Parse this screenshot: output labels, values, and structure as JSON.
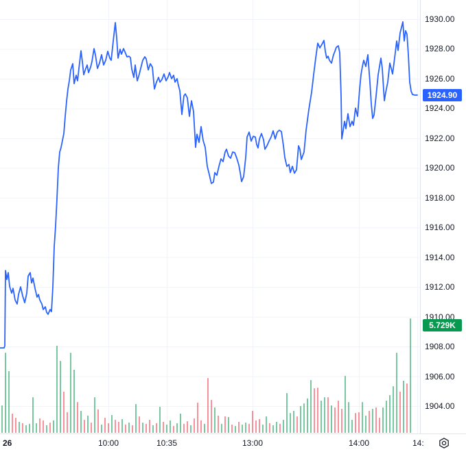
{
  "colors": {
    "line": "#2962ff",
    "grid": "#f0f3fa",
    "axis_border": "#e0e3eb",
    "axis_text": "#131722",
    "volume_up": "rgba(8,153,80,0.55)",
    "volume_down": "rgba(242,54,69,0.55)",
    "last_price_badge_bg": "#2962ff",
    "volume_badge_bg": "#089950",
    "badge_text": "#ffffff"
  },
  "price_scale": {
    "last_price_label": "1924.90",
    "volume_label": "5.729K"
  },
  "time_scale": {
    "labels": [
      "26",
      "10:00",
      "10:35",
      "13:00",
      "14:00",
      "14:"
    ]
  },
  "chart_data": {
    "type": "line",
    "title": "",
    "xlabel": "",
    "ylabel": "",
    "legend": [],
    "grid": true,
    "y_axis": {
      "side": "right",
      "min_label": 1904,
      "max_label": 1930,
      "step": 2,
      "tick_format": "0.00"
    },
    "x_axis": {
      "tick_labels": [
        "26",
        "10:00",
        "10:35",
        "13:00",
        "14:00",
        "14:"
      ]
    },
    "last_price": 1924.9,
    "last_volume_k": 5.729,
    "price_points": [
      [
        0,
        1907.91
      ],
      [
        6,
        1907.91
      ],
      [
        7,
        1908.05
      ],
      [
        8,
        1913.11
      ],
      [
        10,
        1912.51
      ],
      [
        12,
        1912.97
      ],
      [
        14,
        1912.05
      ],
      [
        17,
        1911.59
      ],
      [
        19,
        1911.91
      ],
      [
        22,
        1911.13
      ],
      [
        25,
        1910.86
      ],
      [
        27,
        1911.5
      ],
      [
        30,
        1912.01
      ],
      [
        33,
        1911.41
      ],
      [
        36,
        1910.95
      ],
      [
        39,
        1911.59
      ],
      [
        41,
        1912.74
      ],
      [
        44,
        1912.97
      ],
      [
        46,
        1912.28
      ],
      [
        48,
        1912.6
      ],
      [
        51,
        1911.91
      ],
      [
        54,
        1911.32
      ],
      [
        56,
        1911.5
      ],
      [
        58,
        1911.13
      ],
      [
        61,
        1910.86
      ],
      [
        63,
        1910.49
      ],
      [
        66,
        1910.67
      ],
      [
        68,
        1910.3
      ],
      [
        70,
        1910.17
      ],
      [
        73,
        1910.49
      ],
      [
        75,
        1910.35
      ],
      [
        77,
        1912.0
      ],
      [
        79,
        1914.72
      ],
      [
        81,
        1916.1
      ],
      [
        83,
        1917.94
      ],
      [
        85,
        1920.01
      ],
      [
        87,
        1921.07
      ],
      [
        89,
        1921.39
      ],
      [
        91,
        1921.85
      ],
      [
        93,
        1922.31
      ],
      [
        95,
        1923.47
      ],
      [
        97,
        1924.48
      ],
      [
        99,
        1925.31
      ],
      [
        101,
        1925.86
      ],
      [
        103,
        1926.59
      ],
      [
        106,
        1927.01
      ],
      [
        108,
        1925.67
      ],
      [
        111,
        1926.23
      ],
      [
        113,
        1925.86
      ],
      [
        115,
        1926.69
      ],
      [
        118,
        1927.88
      ],
      [
        120,
        1927.15
      ],
      [
        122,
        1926.27
      ],
      [
        125,
        1926.69
      ],
      [
        127,
        1926.92
      ],
      [
        129,
        1926.41
      ],
      [
        132,
        1926.78
      ],
      [
        134,
        1927.15
      ],
      [
        137,
        1928.02
      ],
      [
        139,
        1927.61
      ],
      [
        142,
        1926.69
      ],
      [
        145,
        1927.05
      ],
      [
        148,
        1927.61
      ],
      [
        151,
        1926.92
      ],
      [
        154,
        1927.24
      ],
      [
        157,
        1927.84
      ],
      [
        160,
        1927.38
      ],
      [
        162,
        1927.24
      ],
      [
        165,
        1928.53
      ],
      [
        168,
        1929.77
      ],
      [
        170,
        1928.76
      ],
      [
        172,
        1927.38
      ],
      [
        175,
        1927.98
      ],
      [
        177,
        1927.65
      ],
      [
        180,
        1928.02
      ],
      [
        183,
        1927.7
      ],
      [
        185,
        1927.47
      ],
      [
        188,
        1927.51
      ],
      [
        190,
        1927.42
      ],
      [
        192,
        1926.64
      ],
      [
        195,
        1926.09
      ],
      [
        197,
        1926.92
      ],
      [
        200,
        1925.86
      ],
      [
        203,
        1926.32
      ],
      [
        205,
        1926.69
      ],
      [
        208,
        1927.24
      ],
      [
        211,
        1927.47
      ],
      [
        213,
        1927.33
      ],
      [
        216,
        1926.59
      ],
      [
        219,
        1927.01
      ],
      [
        222,
        1926.78
      ],
      [
        225,
        1925.31
      ],
      [
        228,
        1925.77
      ],
      [
        231,
        1926.09
      ],
      [
        233,
        1925.77
      ],
      [
        236,
        1925.95
      ],
      [
        239,
        1926.32
      ],
      [
        242,
        1925.86
      ],
      [
        245,
        1926.13
      ],
      [
        247,
        1926.41
      ],
      [
        250,
        1926.0
      ],
      [
        253,
        1926.23
      ],
      [
        255,
        1925.77
      ],
      [
        258,
        1926.0
      ],
      [
        260,
        1925.54
      ],
      [
        262,
        1925.21
      ],
      [
        265,
        1923.6
      ],
      [
        268,
        1924.85
      ],
      [
        270,
        1924.98
      ],
      [
        273,
        1924.71
      ],
      [
        276,
        1923.47
      ],
      [
        279,
        1924.52
      ],
      [
        282,
        1923.79
      ],
      [
        285,
        1921.39
      ],
      [
        287,
        1922.27
      ],
      [
        290,
        1921.72
      ],
      [
        293,
        1922.78
      ],
      [
        296,
        1921.85
      ],
      [
        299,
        1921.39
      ],
      [
        302,
        1920.11
      ],
      [
        305,
        1919.55
      ],
      [
        308,
        1918.96
      ],
      [
        311,
        1919.05
      ],
      [
        313,
        1919.69
      ],
      [
        316,
        1919.51
      ],
      [
        319,
        1920.11
      ],
      [
        322,
        1920.61
      ],
      [
        325,
        1920.43
      ],
      [
        328,
        1921.07
      ],
      [
        330,
        1921.26
      ],
      [
        333,
        1920.8
      ],
      [
        336,
        1920.66
      ],
      [
        339,
        1921.07
      ],
      [
        342,
        1921.03
      ],
      [
        345,
        1920.66
      ],
      [
        348,
        1920.2
      ],
      [
        350,
        1919.69
      ],
      [
        352,
        1919.09
      ],
      [
        355,
        1919.42
      ],
      [
        358,
        1920.7
      ],
      [
        360,
        1922.08
      ],
      [
        363,
        1922.41
      ],
      [
        366,
        1921.81
      ],
      [
        369,
        1922.13
      ],
      [
        372,
        1922.08
      ],
      [
        374,
        1921.58
      ],
      [
        376,
        1921.35
      ],
      [
        378,
        1921.95
      ],
      [
        381,
        1922.31
      ],
      [
        384,
        1921.9
      ],
      [
        386,
        1921.26
      ],
      [
        389,
        1921.49
      ],
      [
        392,
        1921.81
      ],
      [
        395,
        1922.08
      ],
      [
        398,
        1922.5
      ],
      [
        401,
        1921.95
      ],
      [
        404,
        1922.41
      ],
      [
        407,
        1922.54
      ],
      [
        410,
        1922.45
      ],
      [
        413,
        1921.49
      ],
      [
        415,
        1920.7
      ],
      [
        418,
        1920.11
      ],
      [
        421,
        1920.24
      ],
      [
        423,
        1919.69
      ],
      [
        426,
        1920.11
      ],
      [
        429,
        1919.65
      ],
      [
        432,
        1919.88
      ],
      [
        435,
        1921.49
      ],
      [
        437,
        1921.26
      ],
      [
        439,
        1920.57
      ],
      [
        443,
        1921.07
      ],
      [
        446,
        1922.54
      ],
      [
        450,
        1923.93
      ],
      [
        454,
        1925.08
      ],
      [
        457,
        1926.27
      ],
      [
        460,
        1927.38
      ],
      [
        463,
        1928.39
      ],
      [
        466,
        1928.07
      ],
      [
        469,
        1928.3
      ],
      [
        472,
        1928.57
      ],
      [
        474,
        1927.84
      ],
      [
        476,
        1927.38
      ],
      [
        478,
        1927.51
      ],
      [
        480,
        1927.24
      ],
      [
        483,
        1927.05
      ],
      [
        486,
        1927.61
      ],
      [
        488,
        1927.84
      ],
      [
        490,
        1928.11
      ],
      [
        493,
        1928.21
      ],
      [
        495,
        1927.75
      ],
      [
        497,
        1924.85
      ],
      [
        498,
        1921.95
      ],
      [
        500,
        1922.5
      ],
      [
        502,
        1923.14
      ],
      [
        504,
        1922.64
      ],
      [
        507,
        1923.65
      ],
      [
        510,
        1922.78
      ],
      [
        513,
        1923.14
      ],
      [
        515,
        1922.87
      ],
      [
        518,
        1924.02
      ],
      [
        521,
        1923.47
      ],
      [
        524,
        1925.31
      ],
      [
        526,
        1926.27
      ],
      [
        528,
        1926.82
      ],
      [
        530,
        1927.24
      ],
      [
        533,
        1926.82
      ],
      [
        536,
        1927.61
      ],
      [
        539,
        1925.77
      ],
      [
        541,
        1924.29
      ],
      [
        543,
        1923.33
      ],
      [
        545,
        1923.56
      ],
      [
        548,
        1924.85
      ],
      [
        551,
        1926.27
      ],
      [
        555,
        1927.38
      ],
      [
        557,
        1926.69
      ],
      [
        560,
        1924.52
      ],
      [
        562,
        1925.08
      ],
      [
        565,
        1925.77
      ],
      [
        568,
        1927.05
      ],
      [
        570,
        1926.69
      ],
      [
        572,
        1926.32
      ],
      [
        575,
        1927.38
      ],
      [
        578,
        1928.53
      ],
      [
        580,
        1927.9
      ],
      [
        583,
        1929.08
      ],
      [
        587,
        1929.82
      ],
      [
        589,
        1928.53
      ],
      [
        591,
        1929.22
      ],
      [
        593,
        1928.99
      ],
      [
        595,
        1927.61
      ],
      [
        597,
        1925.77
      ],
      [
        599,
        1925.17
      ],
      [
        601,
        1924.94
      ],
      [
        604,
        1924.9
      ],
      [
        608,
        1924.9
      ]
    ],
    "volume": {
      "unit": "K",
      "max_k": 5.729,
      "bars": [
        [
          1.37,
          "g"
        ],
        [
          4.01,
          "g"
        ],
        [
          3.09,
          "g"
        ],
        [
          0.96,
          "r"
        ],
        [
          0.75,
          "r"
        ],
        [
          0.55,
          "g"
        ],
        [
          0.48,
          "r"
        ],
        [
          0.38,
          "g"
        ],
        [
          0.45,
          "g"
        ],
        [
          1.78,
          "g"
        ],
        [
          0.48,
          "g"
        ],
        [
          0.72,
          "r"
        ],
        [
          0.62,
          "r"
        ],
        [
          0.38,
          "g"
        ],
        [
          0.51,
          "r"
        ],
        [
          0.62,
          "g"
        ],
        [
          4.36,
          "g"
        ],
        [
          3.6,
          "g"
        ],
        [
          2.06,
          "r"
        ],
        [
          1.03,
          "r"
        ],
        [
          4.01,
          "g"
        ],
        [
          3.16,
          "g"
        ],
        [
          1.54,
          "r"
        ],
        [
          1.1,
          "g"
        ],
        [
          0.65,
          "r"
        ],
        [
          0.86,
          "g"
        ],
        [
          0.51,
          "r"
        ],
        [
          1.78,
          "g"
        ],
        [
          1.17,
          "r"
        ],
        [
          0.41,
          "g"
        ],
        [
          0.75,
          "r"
        ],
        [
          0.48,
          "r"
        ],
        [
          0.89,
          "g"
        ],
        [
          0.65,
          "r"
        ],
        [
          0.55,
          "r"
        ],
        [
          0.69,
          "g"
        ],
        [
          0.41,
          "r"
        ],
        [
          0.51,
          "g"
        ],
        [
          0.38,
          "r"
        ],
        [
          1.44,
          "g"
        ],
        [
          0.82,
          "r"
        ],
        [
          0.51,
          "g"
        ],
        [
          0.45,
          "r"
        ],
        [
          0.65,
          "r"
        ],
        [
          0.38,
          "g"
        ],
        [
          0.48,
          "r"
        ],
        [
          1.3,
          "g"
        ],
        [
          0.55,
          "r"
        ],
        [
          0.41,
          "g"
        ],
        [
          0.62,
          "g"
        ],
        [
          0.34,
          "r"
        ],
        [
          0.48,
          "g"
        ],
        [
          0.96,
          "g"
        ],
        [
          0.45,
          "r"
        ],
        [
          0.58,
          "r"
        ],
        [
          0.38,
          "g"
        ],
        [
          0.72,
          "r"
        ],
        [
          1.51,
          "r"
        ],
        [
          0.62,
          "r"
        ],
        [
          0.45,
          "g"
        ],
        [
          2.74,
          "r"
        ],
        [
          1.65,
          "r"
        ],
        [
          1.27,
          "g"
        ],
        [
          0.86,
          "r"
        ],
        [
          0.45,
          "g"
        ],
        [
          0.82,
          "r"
        ],
        [
          0.79,
          "g"
        ],
        [
          0.41,
          "r"
        ],
        [
          0.34,
          "g"
        ],
        [
          0.55,
          "r"
        ],
        [
          0.41,
          "g"
        ],
        [
          0.51,
          "g"
        ],
        [
          0.45,
          "r"
        ],
        [
          1.1,
          "r"
        ],
        [
          0.62,
          "r"
        ],
        [
          0.69,
          "r"
        ],
        [
          0.41,
          "g"
        ],
        [
          0.82,
          "g"
        ],
        [
          0.48,
          "r"
        ],
        [
          0.38,
          "g"
        ],
        [
          0.55,
          "g"
        ],
        [
          0.45,
          "r"
        ],
        [
          0.65,
          "g"
        ],
        [
          1.99,
          "g"
        ],
        [
          0.99,
          "g"
        ],
        [
          1.1,
          "g"
        ],
        [
          0.82,
          "r"
        ],
        [
          1.34,
          "g"
        ],
        [
          1.47,
          "g"
        ],
        [
          1.72,
          "g"
        ],
        [
          2.64,
          "g"
        ],
        [
          2.23,
          "r"
        ],
        [
          2.26,
          "r"
        ],
        [
          1.61,
          "g"
        ],
        [
          1.78,
          "g"
        ],
        [
          1.78,
          "r"
        ],
        [
          1.37,
          "g"
        ],
        [
          1.27,
          "r"
        ],
        [
          1.61,
          "r"
        ],
        [
          1.2,
          "r"
        ],
        [
          2.85,
          "g"
        ],
        [
          1.54,
          "g"
        ],
        [
          0.65,
          "g"
        ],
        [
          0.99,
          "r"
        ],
        [
          1.03,
          "r"
        ],
        [
          1.54,
          "g"
        ],
        [
          0.86,
          "g"
        ],
        [
          1.1,
          "r"
        ],
        [
          1.2,
          "g"
        ],
        [
          1.27,
          "r"
        ],
        [
          0.75,
          "r"
        ],
        [
          1.27,
          "g"
        ],
        [
          1.61,
          "g"
        ],
        [
          1.89,
          "g"
        ],
        [
          2.33,
          "g"
        ],
        [
          4.01,
          "g"
        ],
        [
          2.06,
          "r"
        ],
        [
          2.61,
          "g"
        ],
        [
          2.47,
          "r"
        ],
        [
          5.73,
          "g"
        ]
      ]
    }
  }
}
